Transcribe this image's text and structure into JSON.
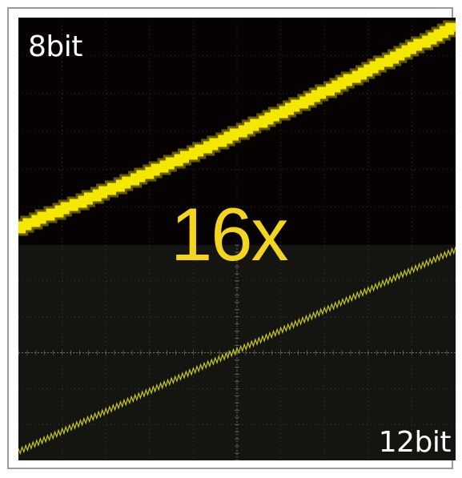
{
  "labels": {
    "top_resolution": "8bit",
    "bottom_resolution": "12bit",
    "ratio": "16x"
  },
  "colors": {
    "top_background": "#050201",
    "bottom_background": "#141410",
    "trace_8bit": "#f4e800",
    "trace_12bit": "#c8c81e",
    "grid": "#3a3a3a",
    "ratio_text": "#f2d51c",
    "label_text": "#ffffff"
  }
}
